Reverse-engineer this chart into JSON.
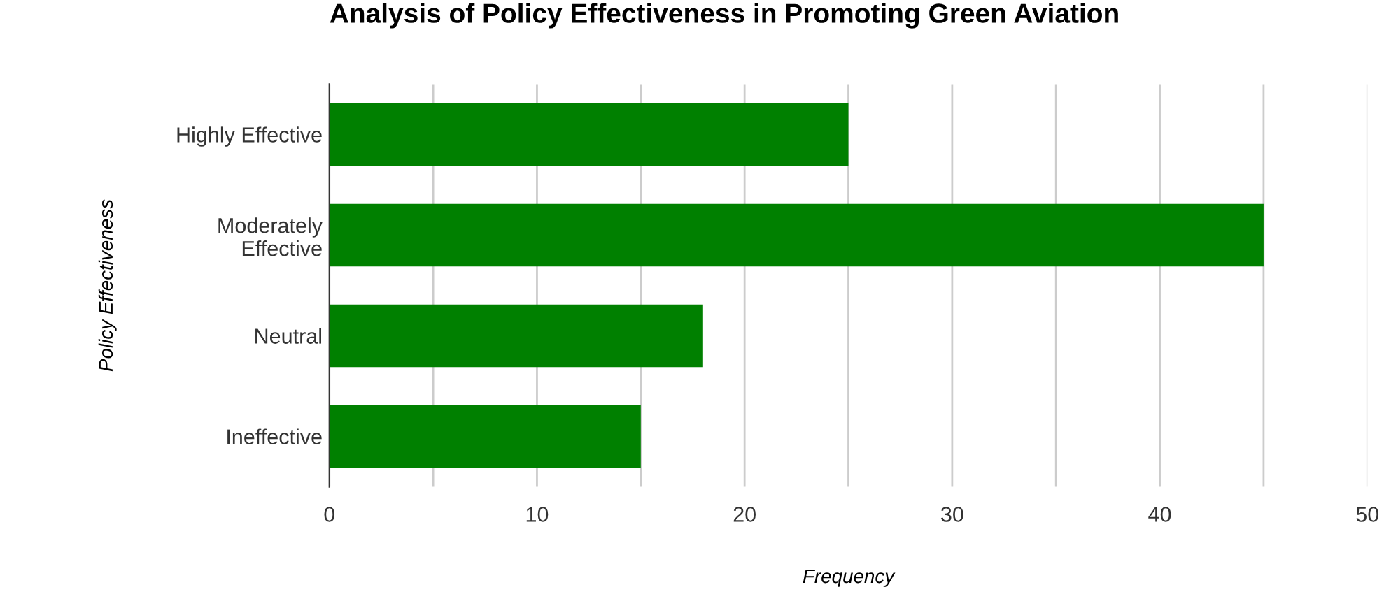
{
  "chart_data": {
    "type": "bar",
    "orientation": "horizontal",
    "title": "Analysis of Policy Effectiveness in Promoting Green Aviation",
    "xlabel": "Frequency",
    "ylabel": "Policy Effectiveness",
    "categories": [
      "Highly Effective",
      "Moderately\nEffective",
      "Neutral",
      "Ineffective"
    ],
    "values": [
      25,
      45,
      18,
      15
    ],
    "color": "#008000",
    "xlim": [
      0,
      50
    ],
    "xticks": [
      0,
      {
        "value": 5,
        "label": null
      },
      10,
      {
        "value": 15,
        "label": null
      },
      20,
      {
        "value": 25,
        "label": null
      },
      30,
      {
        "value": 35,
        "label": null
      },
      40,
      {
        "value": 45,
        "label": null
      },
      50
    ],
    "grid": "x"
  }
}
